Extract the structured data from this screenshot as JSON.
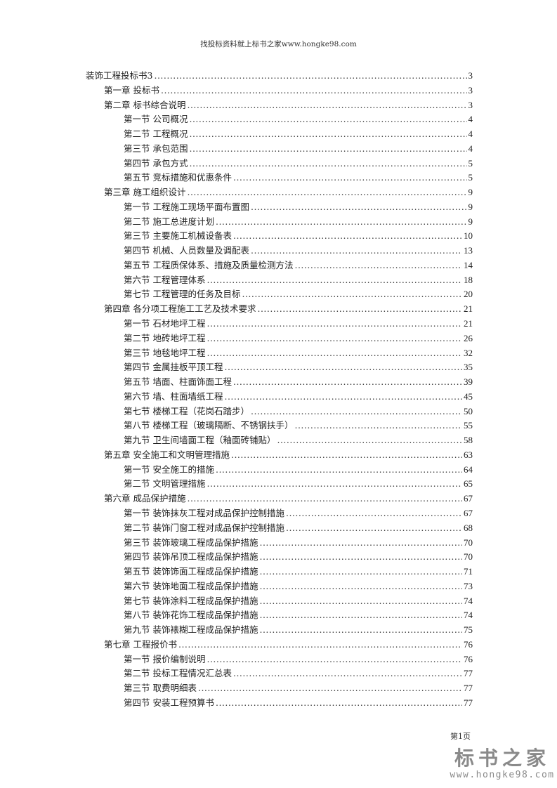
{
  "header": {
    "text": "找投标资料就上标书之家www.hongke98.com"
  },
  "toc": [
    {
      "level": 0,
      "title": "装饰工程投标书3",
      "page": "3"
    },
    {
      "level": 1,
      "title": "第一章  投标书",
      "page": "3"
    },
    {
      "level": 1,
      "title": "第二章  标书综合说明",
      "page": "3"
    },
    {
      "level": 2,
      "title": "第一节  公司概况",
      "page": "4"
    },
    {
      "level": 2,
      "title": "第二节  工程概况",
      "page": "4"
    },
    {
      "level": 2,
      "title": "第三节  承包范围",
      "page": "4"
    },
    {
      "level": 2,
      "title": "第四节  承包方式",
      "page": "5"
    },
    {
      "level": 2,
      "title": "第五节  竞标措施和优惠条件",
      "page": "5"
    },
    {
      "level": 1,
      "title": "第三章  施工组织设计",
      "page": "9"
    },
    {
      "level": 2,
      "title": "第一节  工程施工现场平面布置图",
      "page": "9"
    },
    {
      "level": 2,
      "title": "第二节  施工总进度计划",
      "page": "9"
    },
    {
      "level": 2,
      "title": "第三节  主要施工机械设备表",
      "page": "10"
    },
    {
      "level": 2,
      "title": "第四节  机械、人员数量及调配表",
      "page": "13"
    },
    {
      "level": 2,
      "title": "第五节  工程质保体系、措施及质量检测方法",
      "page": "14"
    },
    {
      "level": 2,
      "title": "第六节  工程管理体系",
      "page": "18"
    },
    {
      "level": 2,
      "title": "第七节  工程管理的任务及目标",
      "page": "20"
    },
    {
      "level": 1,
      "title": "第四章  各分项工程施工工艺及技术要求",
      "page": "21"
    },
    {
      "level": 2,
      "title": "第一节  石材地坪工程",
      "page": "21"
    },
    {
      "level": 2,
      "title": "第二节  地砖地坪工程",
      "page": "26"
    },
    {
      "level": 2,
      "title": "第三节  地毯地坪工程",
      "page": "32"
    },
    {
      "level": 2,
      "title": "第四节  金属挂板平顶工程",
      "page": "35"
    },
    {
      "level": 2,
      "title": "第五节  墙面、柱面饰面工程",
      "page": "39"
    },
    {
      "level": 2,
      "title": "第六节  墙、柱面墙纸工程",
      "page": "45"
    },
    {
      "level": 2,
      "title": "第七节  楼梯工程（花岗石踏步）",
      "page": "50"
    },
    {
      "level": 2,
      "title": "第八节  楼梯工程（玻璃隔断、不锈钢扶手）",
      "page": "55"
    },
    {
      "level": 2,
      "title": "第九节  卫生间墙面工程（釉面砖铺贴）",
      "page": "58"
    },
    {
      "level": 1,
      "title": "第五章  安全施工和文明管理措施",
      "page": "63"
    },
    {
      "level": 2,
      "title": "第一节  安全施工的措施",
      "page": "64"
    },
    {
      "level": 2,
      "title": "第二节  文明管理措施",
      "page": "65"
    },
    {
      "level": 1,
      "title": "第六章  成品保护措施",
      "page": "67"
    },
    {
      "level": 2,
      "title": "第一节  装饰抹灰工程对成品保护控制措施",
      "page": "67"
    },
    {
      "level": 2,
      "title": "第二节  装饰门窗工程对成品保护控制措施",
      "page": "68"
    },
    {
      "level": 2,
      "title": "第三节  装饰玻璃工程成品保护措施",
      "page": "70"
    },
    {
      "level": 2,
      "title": "第四节  装饰吊顶工程成品保护措施",
      "page": "70"
    },
    {
      "level": 2,
      "title": "第五节  装饰饰面工程成品保护措施",
      "page": "71"
    },
    {
      "level": 2,
      "title": "第六节  装饰地面工程成品保护措施",
      "page": "73"
    },
    {
      "level": 2,
      "title": "第七节  装饰涂料工程成品保护措施",
      "page": "74"
    },
    {
      "level": 2,
      "title": "第八节  装饰花饰工程成品保护措施",
      "page": "74"
    },
    {
      "level": 2,
      "title": "第九节  装饰裱糊工程成品保护措施",
      "page": "75"
    },
    {
      "level": 1,
      "title": "第七章  工程报价书",
      "page": "76"
    },
    {
      "level": 2,
      "title": "第一节  报价编制说明",
      "page": "76"
    },
    {
      "level": 2,
      "title": "第二节  投标工程情况汇总表",
      "page": "77"
    },
    {
      "level": 2,
      "title": "第三节  取费明细表",
      "page": "77"
    },
    {
      "level": 2,
      "title": "第四节  安装工程预算书",
      "page": "77"
    }
  ],
  "footer": {
    "page_label": "第1页"
  },
  "logo": {
    "name": "标书之家",
    "url": "www.hongke98.com"
  }
}
